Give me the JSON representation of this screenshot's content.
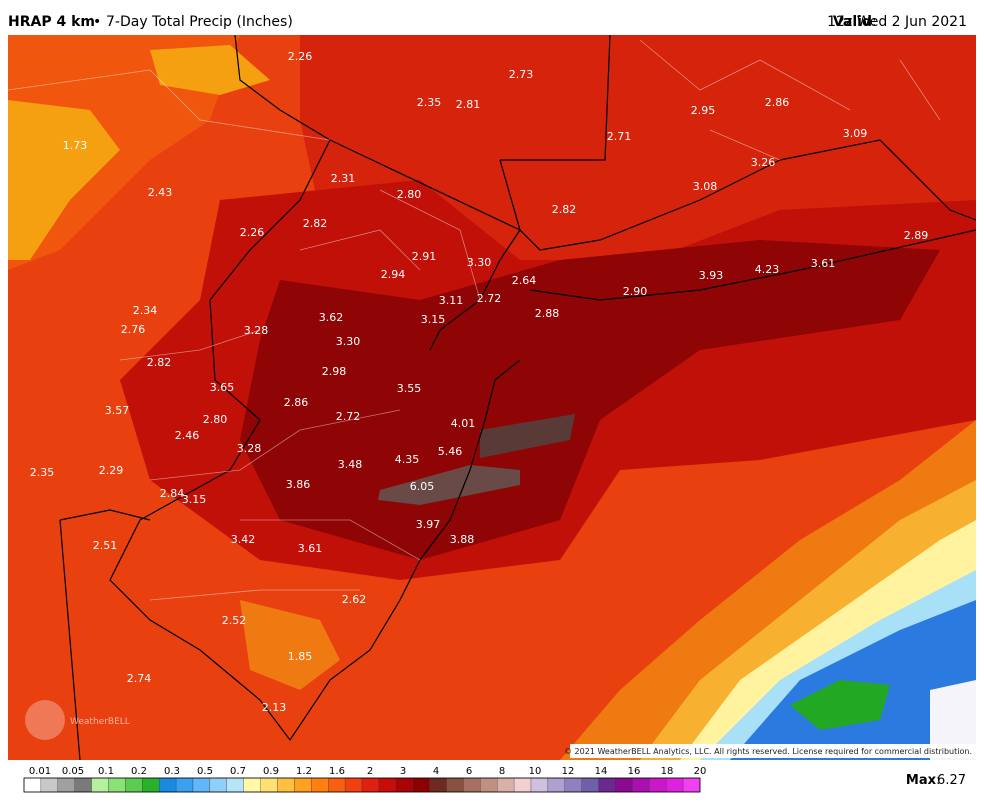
{
  "header": {
    "model": "HRAP 4 km",
    "product": "7-Day Total Precip (Inches)",
    "valid_label": "Valid",
    "valid_time": "12z Wed 2 Jun 2021"
  },
  "map": {
    "labels": [
      "2.26",
      "2.73",
      "2.35",
      "2.81",
      "2.95",
      "2.86",
      "1.73",
      "2.71",
      "3.09",
      "3.26",
      "2.31",
      "3.08",
      "2.43",
      "2.80",
      "2.82",
      "2.82",
      "2.26",
      "2.89",
      "2.91",
      "3.30",
      "2.94",
      "3.93",
      "4.23",
      "3.61",
      "2.64",
      "2.90",
      "3.11",
      "2.72",
      "2.34",
      "3.62",
      "3.15",
      "2.88",
      "2.76",
      "3.28",
      "3.30",
      "2.82",
      "2.98",
      "3.65",
      "3.55",
      "3.57",
      "2.86",
      "2.72",
      "2.80",
      "4.01",
      "2.46",
      "3.28",
      "5.46",
      "4.35",
      "3.48",
      "2.35",
      "2.29",
      "6.05",
      "3.86",
      "2.84",
      "3.15",
      "3.97",
      "2.51",
      "3.42",
      "3.88",
      "3.61",
      "2.62",
      "2.52",
      "1.85",
      "2.74",
      "2.13"
    ],
    "watermark": "WeatherBELL",
    "copyright": "© 2021 WeatherBELL Analytics, LLC. All rights reserved. License required for commercial distribution."
  },
  "colorbar": {
    "labels": [
      "0.01",
      "0.05",
      "0.1",
      "0.2",
      "0.3",
      "0.5",
      "0.7",
      "0.9",
      "1.2",
      "1.6",
      "2",
      "3",
      "4",
      "6",
      "8",
      "10",
      "12",
      "14",
      "16",
      "18",
      "20"
    ]
  },
  "max": {
    "label": "Max",
    "value": "6.27"
  }
}
